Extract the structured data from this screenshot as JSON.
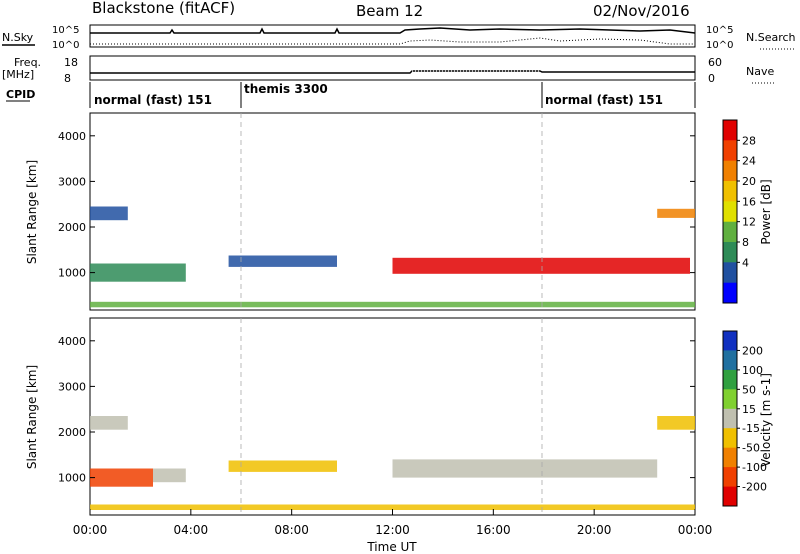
{
  "header": {
    "station": "Blackstone (fitACF)",
    "beam": "Beam 12",
    "date": "02/Nov/2016"
  },
  "summary": {
    "left_labels": {
      "nsky": "N.Sky",
      "freq": "Freq.",
      "freq_unit": "[MHz]",
      "cpid": "CPID"
    },
    "right_labels": {
      "nsearch": "N.Search",
      "nave": "Nave"
    },
    "noise_ticks_left": [
      "10^5",
      "10^0"
    ],
    "noise_ticks_right": [
      "10^5",
      "10^0"
    ],
    "freq_ticks": [
      "18",
      "8"
    ],
    "nave_ticks": [
      "60",
      "0"
    ],
    "cpid_segments": [
      {
        "label": "normal (fast) 151",
        "start_hour": 0
      },
      {
        "label": "themis 3300",
        "start_hour": 6
      },
      {
        "label": "normal (fast) 151",
        "start_hour": 18
      }
    ]
  },
  "chart_data": [
    {
      "type": "heatmap",
      "panel": "power",
      "ylabel": "Slant Range [km]",
      "xlabel": "Time UT",
      "xlim": [
        0,
        24
      ],
      "ylim": [
        180,
        4500
      ],
      "yticks": [
        1000,
        2000,
        3000,
        4000
      ],
      "xticks": [
        "00:00",
        "04:00",
        "08:00",
        "12:00",
        "16:00",
        "20:00",
        "00:00"
      ],
      "colorbar": {
        "label": "Power [dB]",
        "ticks": [
          "28",
          "24",
          "20",
          "16",
          "12",
          "8",
          "4"
        ],
        "colors": [
          "#e00000",
          "#f04000",
          "#f08000",
          "#f0c000",
          "#e0e000",
          "#60b040",
          "#2e8b57",
          "#2050a0",
          "#0000ff"
        ]
      },
      "bands": [
        {
          "t_start": 0.0,
          "t_end": 3.8,
          "range_center": 1000,
          "range_width": 400,
          "color": "#2e8b57"
        },
        {
          "t_start": 0.0,
          "t_end": 1.5,
          "range_center": 2300,
          "range_width": 300,
          "color": "#2050a0"
        },
        {
          "t_start": 5.5,
          "t_end": 9.8,
          "range_center": 1250,
          "range_width": 250,
          "color": "#2050a0"
        },
        {
          "t_start": 12.0,
          "t_end": 23.8,
          "range_center": 1150,
          "range_width": 350,
          "color": "#e00000"
        },
        {
          "t_start": 22.5,
          "t_end": 24.0,
          "range_center": 2300,
          "range_width": 200,
          "color": "#f08000"
        },
        {
          "t_start": 0.0,
          "t_end": 24.0,
          "range_center": 300,
          "range_width": 120,
          "color": "#60b040"
        }
      ]
    },
    {
      "type": "heatmap",
      "panel": "velocity",
      "ylabel": "Slant Range [km]",
      "xlabel": "Time UT",
      "xlim": [
        0,
        24
      ],
      "ylim": [
        180,
        4500
      ],
      "yticks": [
        1000,
        2000,
        3000,
        4000
      ],
      "xticks": [
        "00:00",
        "04:00",
        "08:00",
        "12:00",
        "16:00",
        "20:00",
        "00:00"
      ],
      "colorbar": {
        "label": "Velocity [m s-1]",
        "ticks": [
          "200",
          "100",
          "50",
          "15",
          "-15",
          "-50",
          "-100",
          "-200"
        ],
        "colors": [
          "#1030c0",
          "#2070a0",
          "#30a040",
          "#80d030",
          "#c0c0b0",
          "#f0c000",
          "#f08000",
          "#f04000",
          "#e00000"
        ]
      },
      "bands": [
        {
          "t_start": 0.0,
          "t_end": 2.5,
          "range_center": 1000,
          "range_width": 400,
          "color": "#f04000"
        },
        {
          "t_start": 2.5,
          "t_end": 3.8,
          "range_center": 1050,
          "range_width": 300,
          "color": "#c0c0b0"
        },
        {
          "t_start": 0.0,
          "t_end": 1.5,
          "range_center": 2200,
          "range_width": 300,
          "color": "#c0c0b0"
        },
        {
          "t_start": 5.5,
          "t_end": 9.8,
          "range_center": 1250,
          "range_width": 250,
          "color": "#f0c000"
        },
        {
          "t_start": 12.0,
          "t_end": 22.5,
          "range_center": 1200,
          "range_width": 400,
          "color": "#c0c0b0"
        },
        {
          "t_start": 22.5,
          "t_end": 24.0,
          "range_center": 2200,
          "range_width": 300,
          "color": "#f0c000"
        },
        {
          "t_start": 0.0,
          "t_end": 24.0,
          "range_center": 350,
          "range_width": 120,
          "color": "#f0c000"
        }
      ]
    }
  ]
}
